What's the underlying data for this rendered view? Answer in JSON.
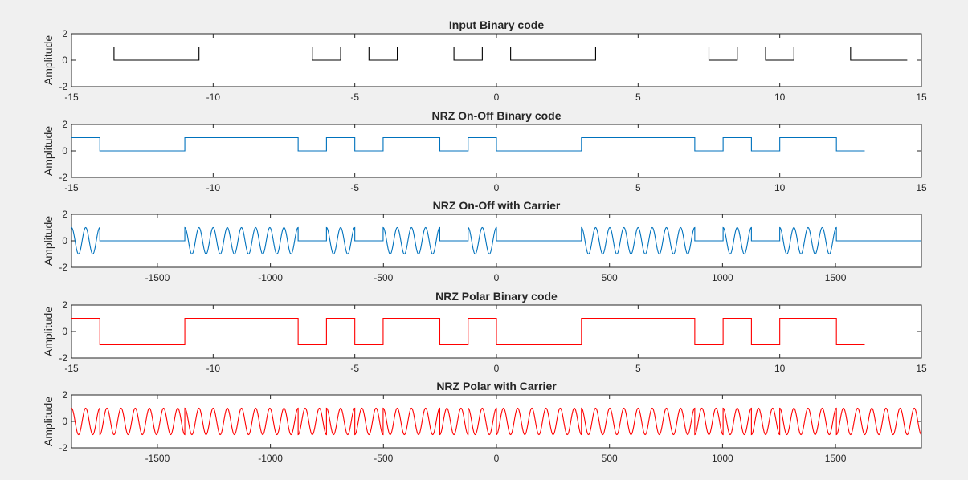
{
  "figure": {
    "background": "#f0f0f0",
    "axes_background": "#ffffff",
    "axis_color": "#262626"
  },
  "chart_data": [
    {
      "type": "line",
      "title": "Input Binary code",
      "xlabel": "",
      "ylabel": "Amplitude",
      "xlim": [
        -15,
        15
      ],
      "ylim": [
        -2,
        2
      ],
      "xticks": [
        -15,
        -10,
        -5,
        0,
        5,
        10,
        15
      ],
      "yticks": [
        -2,
        0,
        2
      ],
      "color": "#000000",
      "grid": false,
      "bits": [
        1,
        0,
        0,
        0,
        1,
        1,
        1,
        1,
        0,
        1,
        0,
        1,
        1,
        0,
        1,
        0,
        0,
        0,
        1,
        1,
        1,
        1,
        0,
        1,
        0,
        1,
        1,
        0,
        0
      ],
      "bit_start": -14.5,
      "bit_width": 1,
      "high": 1,
      "low": 0,
      "carrier": false
    },
    {
      "type": "line",
      "title": "NRZ On-Off Binary code",
      "xlabel": "",
      "ylabel": "Amplitude",
      "xlim": [
        -15,
        15
      ],
      "ylim": [
        -2,
        2
      ],
      "xticks": [
        -15,
        -10,
        -5,
        0,
        5,
        10,
        15
      ],
      "yticks": [
        -2,
        0,
        2
      ],
      "color": "#0072bd",
      "grid": false,
      "bits": [
        1,
        0,
        0,
        0,
        1,
        1,
        1,
        1,
        0,
        1,
        0,
        1,
        1,
        0,
        1,
        0,
        0,
        0,
        1,
        1,
        1,
        1,
        0,
        1,
        0,
        1,
        1,
        0
      ],
      "bit_start": -15,
      "bit_width": 1,
      "high": 1,
      "low": 0,
      "carrier": false
    },
    {
      "type": "line",
      "title": "NRZ On-Off with Carrier",
      "xlabel": "",
      "ylabel": "Amplitude",
      "xlim": [
        -1880,
        1880
      ],
      "ylim": [
        -2,
        2
      ],
      "xticks": [
        -1500,
        -1000,
        -500,
        0,
        500,
        1000,
        1500
      ],
      "yticks": [
        -2,
        0,
        2
      ],
      "color": "#0072bd",
      "grid": false,
      "bits": [
        1,
        0,
        0,
        0,
        1,
        1,
        1,
        1,
        0,
        1,
        0,
        1,
        1,
        0,
        1,
        0,
        0,
        0,
        1,
        1,
        1,
        1,
        0,
        1,
        0,
        1,
        1,
        0,
        0,
        0
      ],
      "bit_start": -1880,
      "bit_width": 125.33,
      "high": 1,
      "low": 0,
      "carrier": true,
      "carrier_period": 62.67,
      "amplitude": 1
    },
    {
      "type": "line",
      "title": "NRZ Polar Binary code",
      "xlabel": "",
      "ylabel": "Amplitude",
      "xlim": [
        -15,
        15
      ],
      "ylim": [
        -2,
        2
      ],
      "xticks": [
        -15,
        -10,
        -5,
        0,
        5,
        10,
        15
      ],
      "yticks": [
        -2,
        0,
        2
      ],
      "color": "#ff0000",
      "grid": false,
      "bits": [
        1,
        0,
        0,
        0,
        1,
        1,
        1,
        1,
        0,
        1,
        0,
        1,
        1,
        0,
        1,
        0,
        0,
        0,
        1,
        1,
        1,
        1,
        0,
        1,
        0,
        1,
        1,
        0
      ],
      "bit_start": -15,
      "bit_width": 1,
      "high": 1,
      "low": -1,
      "carrier": false
    },
    {
      "type": "line",
      "title": "NRZ Polar with Carrier",
      "xlabel": "",
      "ylabel": "Amplitude",
      "xlim": [
        -1880,
        1880
      ],
      "ylim": [
        -2,
        2
      ],
      "xticks": [
        -1500,
        -1000,
        -500,
        0,
        500,
        1000,
        1500
      ],
      "yticks": [
        -2,
        0,
        2
      ],
      "color": "#ff0000",
      "grid": false,
      "bits": [
        1,
        0,
        0,
        0,
        1,
        1,
        1,
        1,
        0,
        1,
        0,
        1,
        1,
        0,
        1,
        0,
        0,
        0,
        1,
        1,
        1,
        1,
        0,
        1,
        0,
        1,
        1,
        0,
        0,
        0
      ],
      "bit_start": -1880,
      "bit_width": 125.33,
      "high": 1,
      "low": -1,
      "carrier": true,
      "carrier_period": 62.67,
      "amplitude": 1
    }
  ]
}
